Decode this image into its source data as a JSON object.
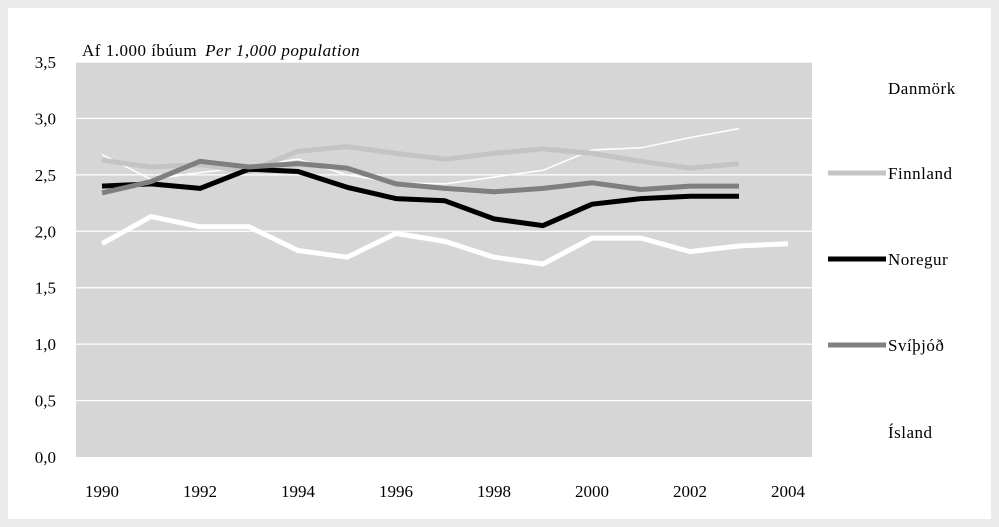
{
  "chart_data": {
    "type": "line",
    "unit_label": "Af 1.000 íbúum",
    "unit_label_en": "Per 1,000 population",
    "x": [
      1990,
      1991,
      1992,
      1993,
      1994,
      1995,
      1996,
      1997,
      1998,
      1999,
      2000,
      2001,
      2002,
      2003,
      2004
    ],
    "x_ticks": [
      "1990",
      "1992",
      "1994",
      "1996",
      "1998",
      "2000",
      "2002",
      "2004"
    ],
    "y_ticks": [
      "0,0",
      "0,5",
      "1,0",
      "1,5",
      "2,0",
      "2,5",
      "3,0",
      "3,5"
    ],
    "ylim": [
      0,
      3.5
    ],
    "xlim": [
      1990,
      2004
    ],
    "grid": true,
    "legend_position": "right",
    "series": [
      {
        "name": "Danmörk",
        "color": "#ffffff",
        "width": 1.5,
        "values": [
          2.68,
          2.46,
          2.52,
          2.57,
          2.64,
          2.5,
          2.43,
          2.42,
          2.48,
          2.54,
          2.72,
          2.74,
          2.83,
          2.91,
          null
        ]
      },
      {
        "name": "Finnland",
        "color": "#c4c4c4",
        "width": 5,
        "values": [
          2.63,
          2.57,
          2.59,
          2.53,
          2.71,
          2.75,
          2.69,
          2.64,
          2.69,
          2.73,
          2.69,
          2.62,
          2.56,
          2.6,
          null
        ]
      },
      {
        "name": "Noregur",
        "color": "#000000",
        "width": 5,
        "values": [
          2.4,
          2.42,
          2.38,
          2.55,
          2.53,
          2.39,
          2.29,
          2.27,
          2.11,
          2.05,
          2.24,
          2.29,
          2.31,
          2.31,
          null
        ]
      },
      {
        "name": "Svíþjóð",
        "color": "#7f7f7f",
        "width": 5,
        "values": [
          2.34,
          2.44,
          2.62,
          2.57,
          2.6,
          2.56,
          2.42,
          2.38,
          2.35,
          2.38,
          2.43,
          2.37,
          2.4,
          2.4,
          null
        ]
      },
      {
        "name": "Ísland",
        "color": "#ffffff",
        "width": 5,
        "values": [
          1.89,
          2.13,
          2.04,
          2.04,
          1.83,
          1.77,
          1.98,
          1.91,
          1.77,
          1.71,
          1.94,
          1.94,
          1.82,
          1.87,
          1.89
        ]
      }
    ]
  }
}
